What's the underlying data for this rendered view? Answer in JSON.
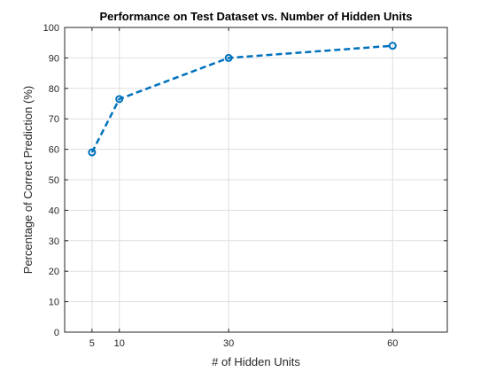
{
  "colors": {
    "series": "#0072bd",
    "grid": "#dfdfdf",
    "axis": "#262626",
    "background": "#ffffff"
  },
  "chart_data": {
    "type": "line",
    "title": "Performance on Test Dataset vs. Number of Hidden Units",
    "xlabel": "# of Hidden Units",
    "ylabel": "Percentage of Correct Prediction (%)",
    "xlim": [
      0,
      70
    ],
    "ylim": [
      0,
      100
    ],
    "x_ticks": [
      5,
      10,
      30,
      60
    ],
    "y_ticks": [
      0,
      10,
      20,
      30,
      40,
      50,
      60,
      70,
      80,
      90,
      100
    ],
    "grid": true,
    "line_style": "dashed",
    "marker": "circle",
    "series": [
      {
        "x": [
          5,
          10,
          30,
          60
        ],
        "values": [
          59,
          76.5,
          90,
          94
        ]
      }
    ]
  }
}
